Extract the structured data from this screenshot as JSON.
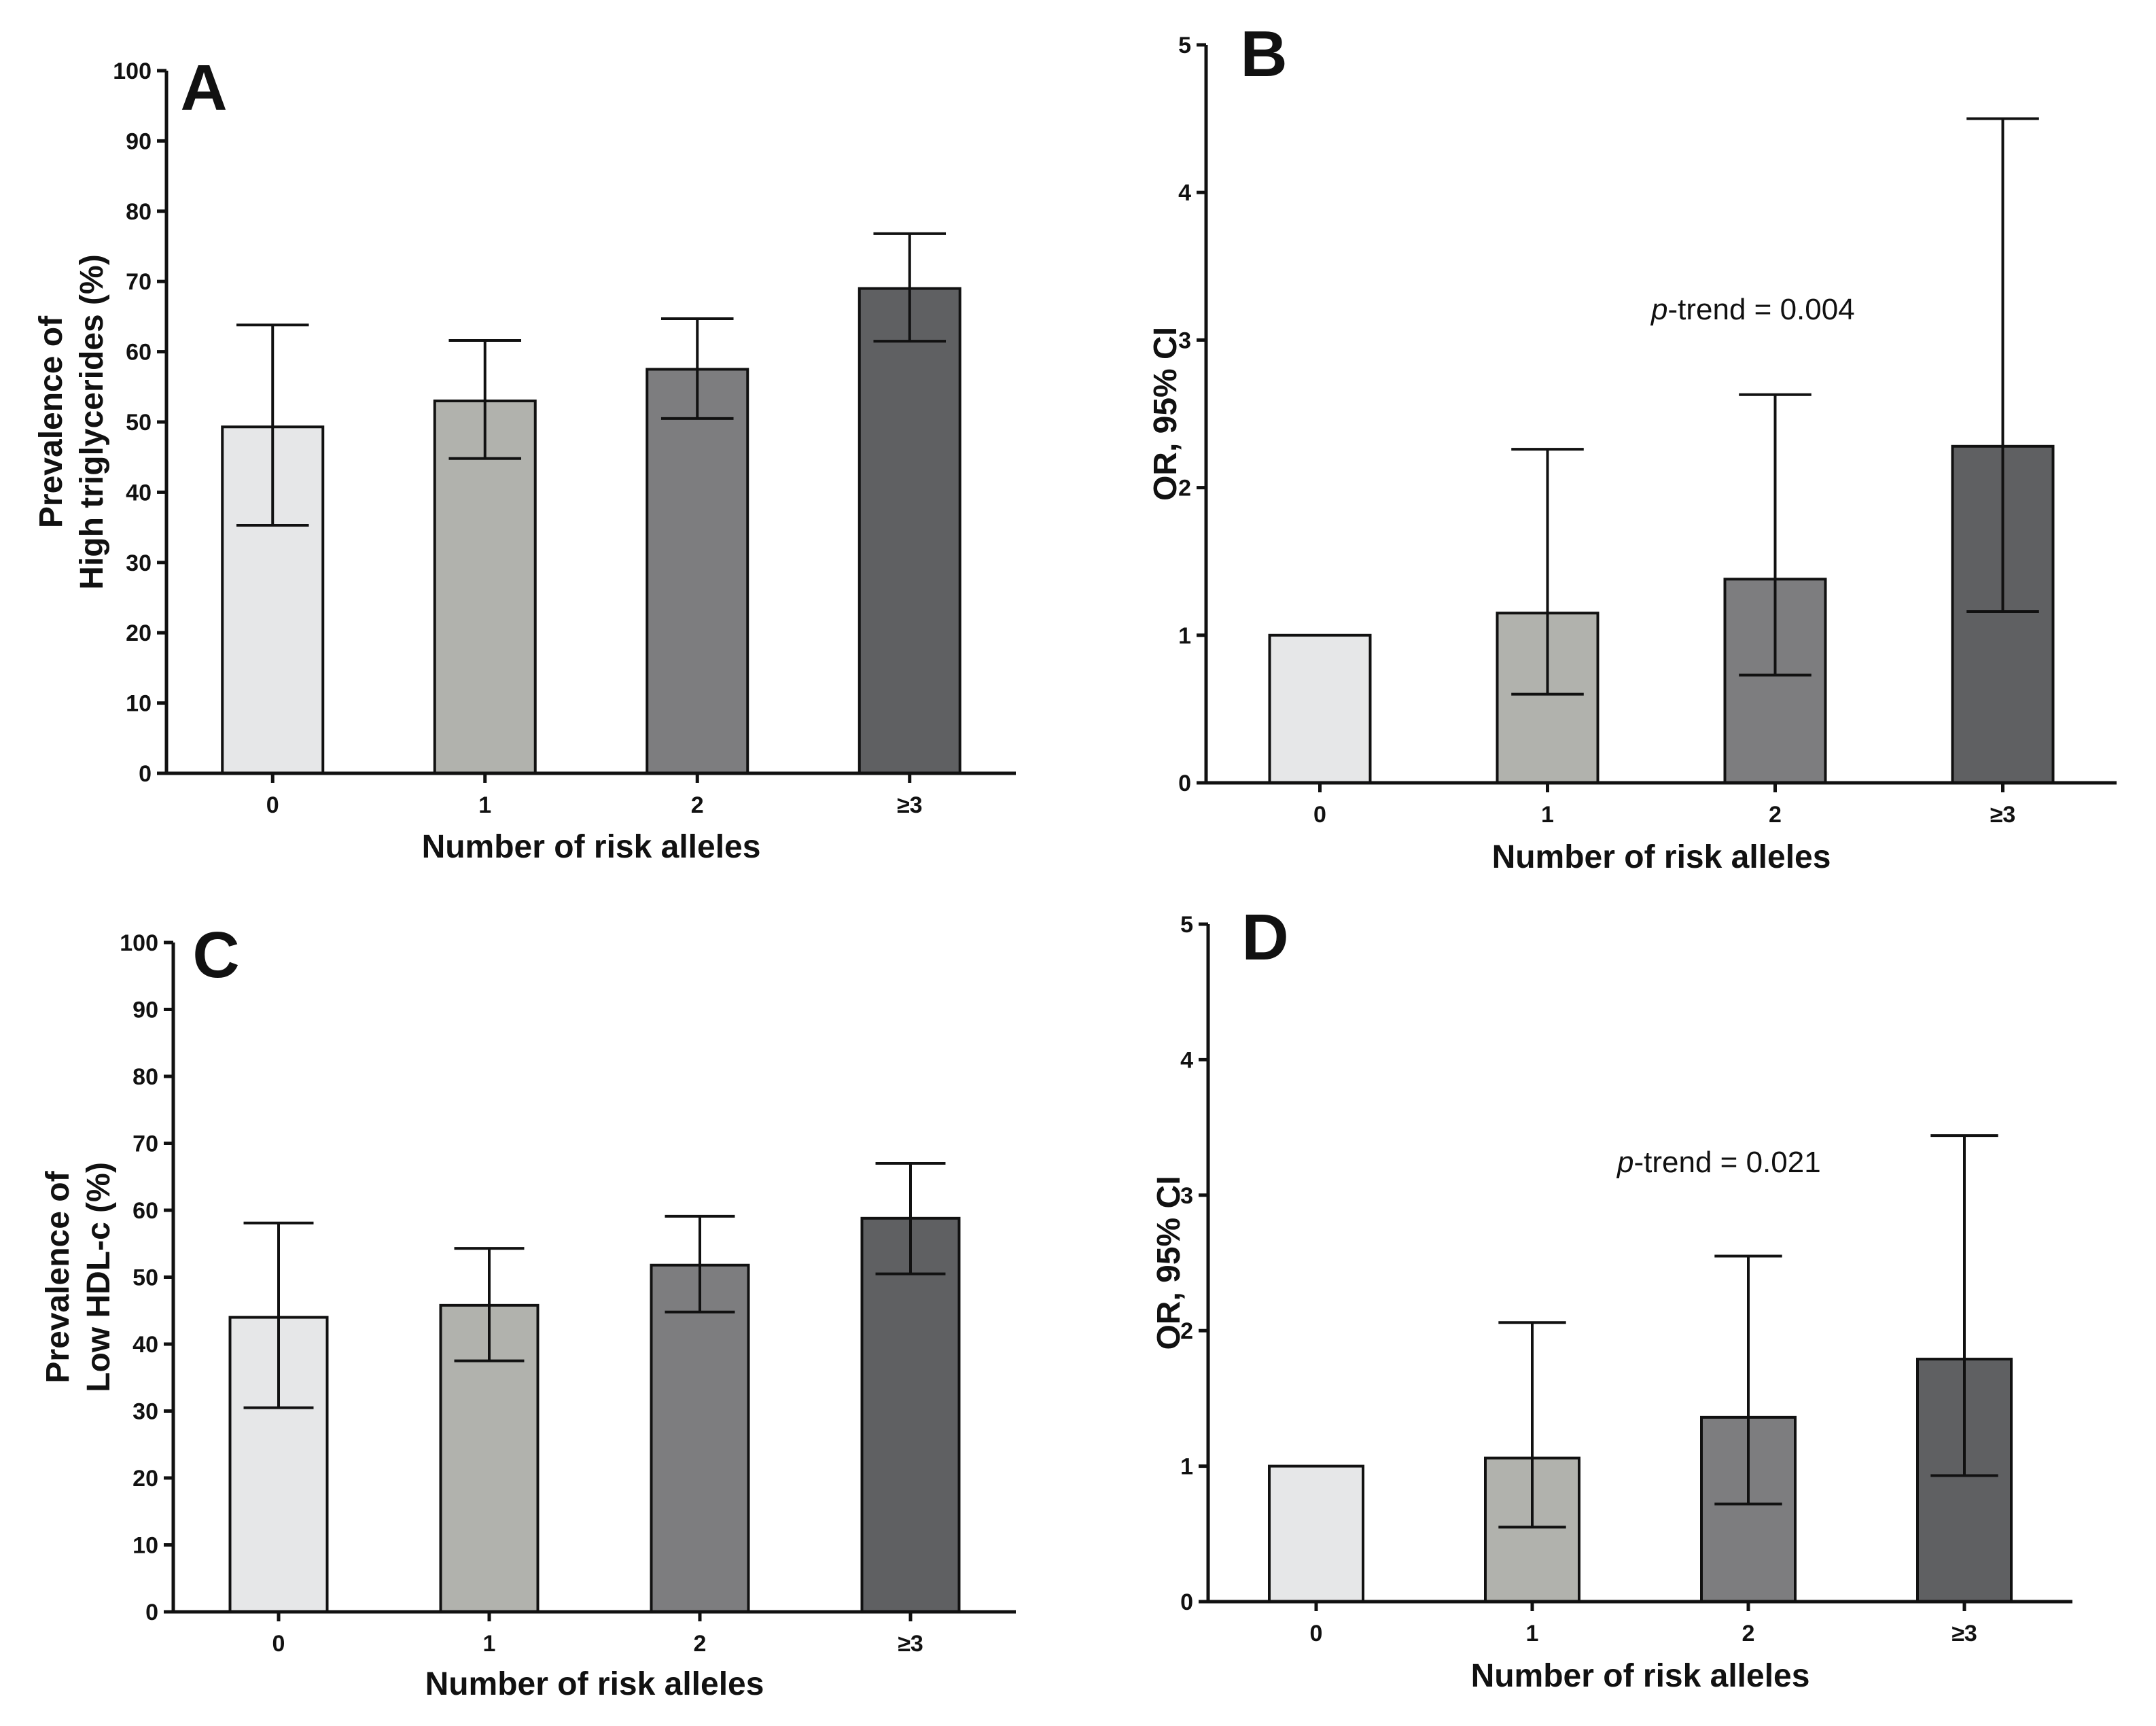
{
  "chart_data": [
    {
      "panel": "A",
      "type": "bar",
      "title": "",
      "xlabel": "Number of risk alleles",
      "ylabel_lines": [
        "Prevalence of",
        "High triglycerides (%)"
      ],
      "categories": [
        "0",
        "1",
        "2",
        "≥3"
      ],
      "values": [
        49.3,
        53.0,
        57.5,
        69.0
      ],
      "error_low": [
        35.3,
        44.8,
        50.5,
        61.5
      ],
      "error_high": [
        63.8,
        61.6,
        64.7,
        76.8
      ],
      "bar_colors": [
        "#e6e7e8",
        "#b1b2ad",
        "#7d7d7f",
        "#5f6062"
      ],
      "ylim": [
        0,
        100
      ],
      "yticks": [
        0,
        10,
        20,
        30,
        40,
        50,
        60,
        70,
        80,
        90,
        100
      ],
      "annotation": "",
      "grid": false
    },
    {
      "panel": "B",
      "type": "bar",
      "title": "",
      "xlabel": "Number of risk alleles",
      "ylabel_lines": [
        "OR, 95% CI"
      ],
      "categories": [
        "0",
        "1",
        "2",
        "≥3"
      ],
      "values": [
        1.0,
        1.15,
        1.38,
        2.28
      ],
      "error_low": [
        null,
        0.6,
        0.73,
        1.16
      ],
      "error_high": [
        null,
        2.26,
        2.63,
        4.5
      ],
      "bar_colors": [
        "#e6e7e8",
        "#b1b2ad",
        "#7d7d7f",
        "#5f6062"
      ],
      "ylim": [
        0,
        5
      ],
      "yticks": [
        0,
        1,
        2,
        3,
        4,
        5
      ],
      "annotation_italic": "p",
      "annotation": "-trend = 0.004",
      "grid": false
    },
    {
      "panel": "C",
      "type": "bar",
      "title": "",
      "xlabel": "Number of risk alleles",
      "ylabel_lines": [
        "Prevalence of",
        "Low HDL-c (%)"
      ],
      "categories": [
        "0",
        "1",
        "2",
        "≥3"
      ],
      "values": [
        44.0,
        45.8,
        51.8,
        58.8
      ],
      "error_low": [
        30.5,
        37.5,
        44.8,
        50.5
      ],
      "error_high": [
        58.1,
        54.3,
        59.1,
        67.0
      ],
      "bar_colors": [
        "#e6e7e8",
        "#b1b2ad",
        "#7d7d7f",
        "#5f6062"
      ],
      "ylim": [
        0,
        100
      ],
      "yticks": [
        0,
        10,
        20,
        30,
        40,
        50,
        60,
        70,
        80,
        90,
        100
      ],
      "annotation": "",
      "grid": false
    },
    {
      "panel": "D",
      "type": "bar",
      "title": "",
      "xlabel": "Number of risk alleles",
      "ylabel_lines": [
        "OR, 95% CI"
      ],
      "categories": [
        "0",
        "1",
        "2",
        "≥3"
      ],
      "values": [
        1.0,
        1.06,
        1.36,
        1.79
      ],
      "error_low": [
        null,
        0.55,
        0.72,
        0.93
      ],
      "error_high": [
        null,
        2.06,
        2.55,
        3.44
      ],
      "bar_colors": [
        "#e6e7e8",
        "#b1b2ad",
        "#7d7d7f",
        "#5f6062"
      ],
      "ylim": [
        0,
        5
      ],
      "yticks": [
        0,
        1,
        2,
        3,
        4,
        5
      ],
      "annotation_italic": "p",
      "annotation": "-trend = 0.021",
      "grid": false
    }
  ]
}
